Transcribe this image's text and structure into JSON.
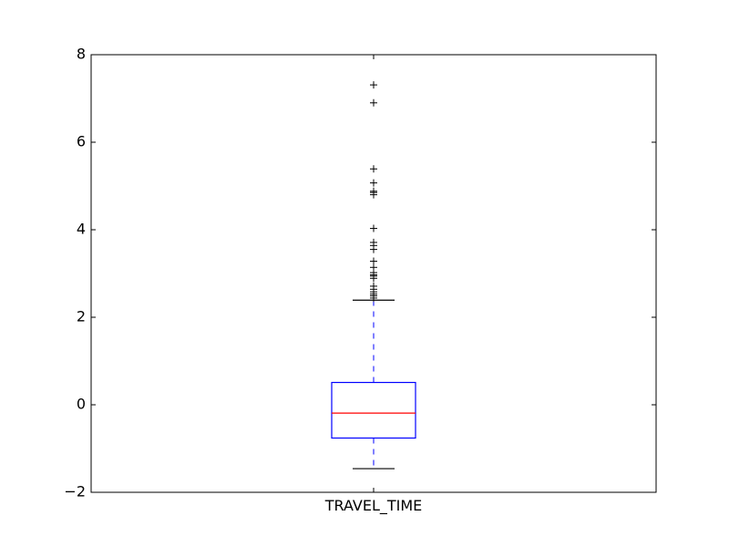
{
  "chart_data": {
    "type": "box",
    "title": "",
    "xlabel": "",
    "ylabel": "",
    "categories": [
      "TRAVEL_TIME"
    ],
    "ylim": [
      -2,
      8
    ],
    "yticks": [
      {
        "value": -2,
        "label": "−2"
      },
      {
        "value": 0,
        "label": "0"
      },
      {
        "value": 2,
        "label": "2"
      },
      {
        "value": 4,
        "label": "4"
      },
      {
        "value": 6,
        "label": "6"
      },
      {
        "value": 8,
        "label": "8"
      }
    ],
    "grid": false,
    "boxes": [
      {
        "category": "TRAVEL_TIME",
        "whisker_low": -1.46,
        "q1": -0.76,
        "median": -0.19,
        "q3": 0.51,
        "whisker_high": 2.39,
        "outliers": [
          2.44,
          2.49,
          2.53,
          2.58,
          2.64,
          2.71,
          2.89,
          2.94,
          2.97,
          3.02,
          3.14,
          3.28,
          3.55,
          3.64,
          3.71,
          4.03,
          4.8,
          4.85,
          4.88,
          5.07,
          5.39,
          6.9,
          7.31
        ]
      }
    ],
    "colors": {
      "box": "#0000ff",
      "median": "#ff0000",
      "whisker": "#0000ff",
      "cap": "#000000",
      "flier": "#000000",
      "axes": "#000000"
    }
  }
}
